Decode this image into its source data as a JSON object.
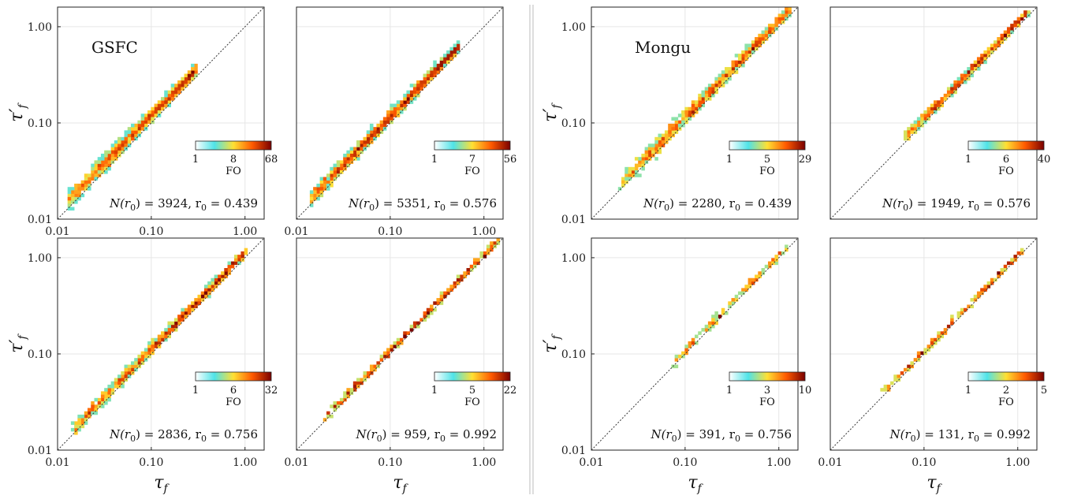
{
  "figure": {
    "colors": {
      "colormap": [
        "#ffffff",
        "#4fe3e8",
        "#ffe033",
        "#ff5a00",
        "#7a0000"
      ],
      "diagonal": "#333333",
      "grid": "#e6e6e6"
    },
    "panel_order": [
      "GSFC-r0.439",
      "GSFC-r0.576",
      "Mongu-r0.439",
      "Mongu-r0.576",
      "GSFC-r0.756",
      "GSFC-r0.992",
      "Mongu-r0.756",
      "Mongu-r0.992"
    ]
  },
  "chart_data": [
    {
      "type": "heatmap",
      "site": "GSFC",
      "title": "GSFC",
      "x_scale": "log",
      "y_scale": "log",
      "xlim": [
        0.01,
        1.6
      ],
      "ylim": [
        0.01,
        1.6
      ],
      "xticks": [
        "0.01",
        "0.10",
        "1.00"
      ],
      "yticks": [
        "0.01",
        "0.10",
        "1.00"
      ],
      "xlabel": "",
      "ylabel": "τ′",
      "ylabel_sub": "f",
      "grid": true,
      "reference_line": "1:1",
      "colorbar": {
        "label": "FO",
        "ticks": [
          "1",
          "8",
          "68"
        ],
        "min": 1,
        "max": 68,
        "placement": "right"
      },
      "annotation": {
        "prefix": "N(r",
        "sub0": "0",
        "mid": ") = 3924, r",
        "sub1": "0",
        "suffix": " = 0.439"
      },
      "n": 3924,
      "r0": 0.439,
      "ratio_center": 1.2,
      "ratio_spread": 0.12,
      "x_range": [
        0.013,
        0.3
      ]
    },
    {
      "type": "heatmap",
      "site": "GSFC",
      "title": "",
      "x_scale": "log",
      "y_scale": "log",
      "xlim": [
        0.01,
        1.6
      ],
      "ylim": [
        0.01,
        1.6
      ],
      "xticks": [
        "0.01",
        "0.10",
        "1.00"
      ],
      "yticks": [],
      "xlabel": "",
      "ylabel": "",
      "grid": true,
      "reference_line": "1:1",
      "colorbar": {
        "label": "FO",
        "ticks": [
          "1",
          "7",
          "56"
        ],
        "min": 1,
        "max": 56,
        "placement": "right"
      },
      "annotation": {
        "prefix": "N(r",
        "sub0": "0",
        "mid": ") = 5351, r",
        "sub1": "0",
        "suffix": " = 0.576"
      },
      "n": 5351,
      "r0": 0.576,
      "ratio_center": 1.16,
      "ratio_spread": 0.1,
      "x_range": [
        0.014,
        0.55
      ]
    },
    {
      "type": "heatmap",
      "site": "Mongu",
      "title": "Mongu",
      "x_scale": "log",
      "y_scale": "log",
      "xlim": [
        0.01,
        1.6
      ],
      "ylim": [
        0.01,
        1.6
      ],
      "xticks": [],
      "yticks": [
        "0.01",
        "0.10",
        "1.00"
      ],
      "xlabel": "",
      "ylabel": "τ′",
      "ylabel_sub": "f",
      "grid": true,
      "reference_line": "1:1",
      "colorbar": {
        "label": "FO",
        "ticks": [
          "1",
          "5",
          "29"
        ],
        "min": 1,
        "max": 29,
        "placement": "right"
      },
      "annotation": {
        "prefix": "N(r",
        "sub0": "0",
        "mid": ") = 2280, r",
        "sub1": "0",
        "suffix": " = 0.439"
      },
      "n": 2280,
      "r0": 0.439,
      "ratio_center": 1.15,
      "ratio_spread": 0.12,
      "x_range": [
        0.02,
        1.3
      ]
    },
    {
      "type": "heatmap",
      "site": "Mongu",
      "title": "",
      "x_scale": "log",
      "y_scale": "log",
      "xlim": [
        0.01,
        1.6
      ],
      "ylim": [
        0.01,
        1.6
      ],
      "xticks": [],
      "yticks": [],
      "xlabel": "",
      "ylabel": "",
      "grid": true,
      "reference_line": "1:1",
      "colorbar": {
        "label": "FO",
        "ticks": [
          "1",
          "6",
          "40"
        ],
        "min": 1,
        "max": 40,
        "placement": "right"
      },
      "annotation": {
        "prefix": "N(r",
        "sub0": "0",
        "mid": ") = 1949, r",
        "sub1": "0",
        "suffix": " = 0.576"
      },
      "n": 1949,
      "r0": 0.576,
      "ratio_center": 1.12,
      "ratio_spread": 0.08,
      "x_range": [
        0.06,
        1.3
      ]
    },
    {
      "type": "heatmap",
      "site": "GSFC",
      "title": "",
      "x_scale": "log",
      "y_scale": "log",
      "xlim": [
        0.01,
        1.6
      ],
      "ylim": [
        0.01,
        1.6
      ],
      "xticks": [
        "0.01",
        "0.10",
        "1.00"
      ],
      "yticks": [
        "0.01",
        "0.10",
        "1.00"
      ],
      "xlabel": "τ",
      "xlabel_sub": "f",
      "ylabel": "τ′",
      "ylabel_sub": "f",
      "grid": true,
      "reference_line": "1:1",
      "colorbar": {
        "label": "FO",
        "ticks": [
          "1",
          "6",
          "32"
        ],
        "min": 1,
        "max": 32,
        "placement": "right"
      },
      "annotation": {
        "prefix": "N(r",
        "sub0": "0",
        "mid": ") = 2836, r",
        "sub1": "0",
        "suffix": " = 0.756"
      },
      "n": 2836,
      "r0": 0.756,
      "ratio_center": 1.13,
      "ratio_spread": 0.09,
      "x_range": [
        0.015,
        1.0
      ]
    },
    {
      "type": "heatmap",
      "site": "GSFC",
      "title": "",
      "x_scale": "log",
      "y_scale": "log",
      "xlim": [
        0.01,
        1.6
      ],
      "ylim": [
        0.01,
        1.6
      ],
      "xticks": [
        "0.01",
        "0.10",
        "1.00"
      ],
      "yticks": [],
      "xlabel": "τ",
      "xlabel_sub": "f",
      "ylabel": "",
      "grid": true,
      "reference_line": "1:1",
      "colorbar": {
        "label": "FO",
        "ticks": [
          "1",
          "5",
          "22"
        ],
        "min": 1,
        "max": 22,
        "placement": "right"
      },
      "annotation": {
        "prefix": "N(r",
        "sub0": "0",
        "mid": ") = 959, r",
        "sub1": "0",
        "suffix": " = 0.992"
      },
      "n": 959,
      "r0": 0.992,
      "ratio_center": 1.08,
      "ratio_spread": 0.06,
      "x_range": [
        0.02,
        1.4
      ]
    },
    {
      "type": "heatmap",
      "site": "Mongu",
      "title": "",
      "x_scale": "log",
      "y_scale": "log",
      "xlim": [
        0.01,
        1.6
      ],
      "ylim": [
        0.01,
        1.6
      ],
      "xticks": [
        "0.01",
        "0.10",
        "1.00"
      ],
      "yticks": [
        "0.01",
        "0.10",
        "1.00"
      ],
      "xlabel": "τ",
      "xlabel_sub": "f",
      "ylabel": "τ′",
      "ylabel_sub": "f",
      "grid": true,
      "reference_line": "1:1",
      "colorbar": {
        "label": "FO",
        "ticks": [
          "1",
          "3",
          "10"
        ],
        "min": 1,
        "max": 10,
        "placement": "right"
      },
      "annotation": {
        "prefix": "N(r",
        "sub0": "0",
        "mid": ") = 391, r",
        "sub1": "0",
        "suffix": " = 0.756"
      },
      "n": 391,
      "r0": 0.756,
      "ratio_center": 1.08,
      "ratio_spread": 0.06,
      "x_range": [
        0.07,
        1.2
      ]
    },
    {
      "type": "heatmap",
      "site": "Mongu",
      "title": "",
      "x_scale": "log",
      "y_scale": "log",
      "xlim": [
        0.01,
        1.6
      ],
      "ylim": [
        0.01,
        1.6
      ],
      "xticks": [
        "0.01",
        "0.10",
        "1.00"
      ],
      "yticks": [],
      "xlabel": "τ",
      "xlabel_sub": "f",
      "ylabel": "",
      "grid": true,
      "reference_line": "1:1",
      "colorbar": {
        "label": "FO",
        "ticks": [
          "1",
          "2",
          "5"
        ],
        "min": 1,
        "max": 5,
        "placement": "right"
      },
      "annotation": {
        "prefix": "N(r",
        "sub0": "0",
        "mid": ") = 131, r",
        "sub1": "0",
        "suffix": " = 0.992"
      },
      "n": 131,
      "r0": 0.992,
      "ratio_center": 1.07,
      "ratio_spread": 0.05,
      "x_range": [
        0.035,
        1.1
      ]
    }
  ]
}
